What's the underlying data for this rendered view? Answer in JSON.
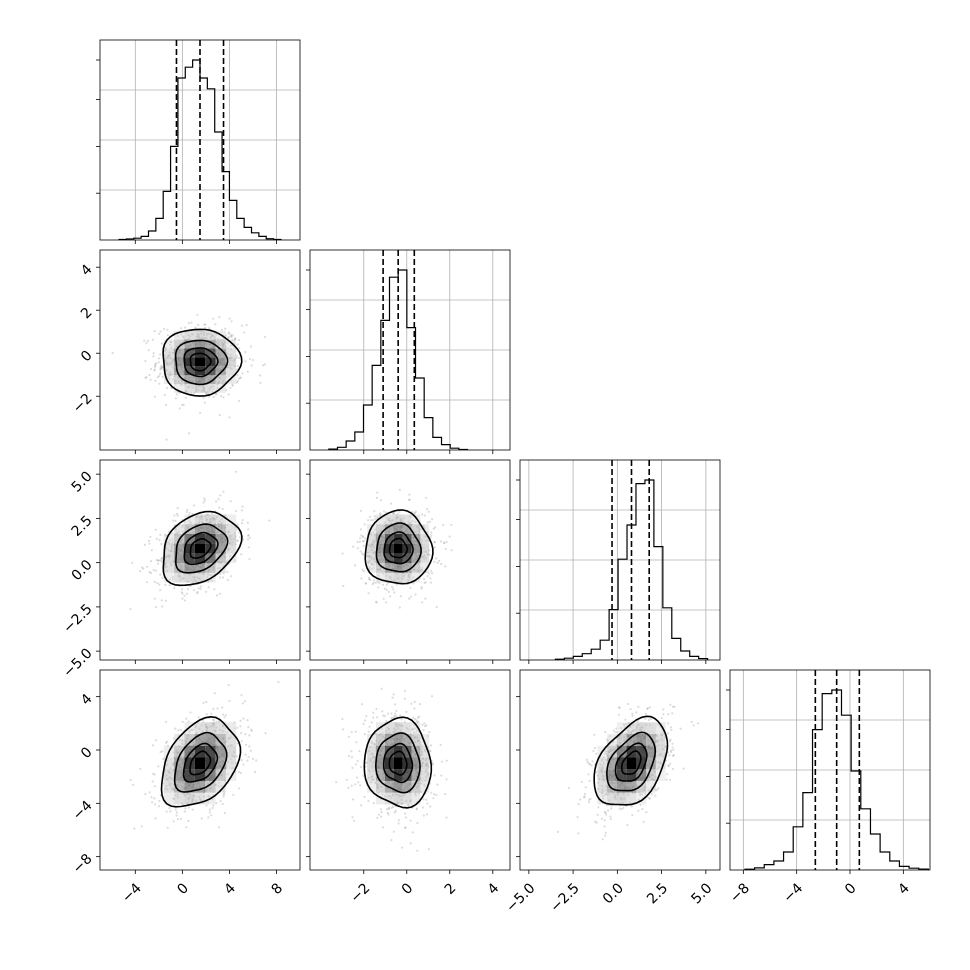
{
  "chart_data": {
    "type": "corner",
    "title": "",
    "grid": true,
    "parameters": [
      {
        "range": [
          -7,
          10
        ],
        "ticks": [
          -4,
          0,
          4,
          8
        ],
        "tick_labels": [
          "−4",
          "0",
          "4",
          "8"
        ],
        "mean": 1.5,
        "sd": 1.6,
        "quantiles": [
          -0.5,
          1.5,
          3.5
        ],
        "hist": [
          0.003,
          0.006,
          0.01,
          0.02,
          0.05,
          0.12,
          0.27,
          0.52,
          0.9,
          0.96,
          1.0,
          0.9,
          0.84,
          0.6,
          0.38,
          0.22,
          0.12,
          0.07,
          0.04,
          0.02,
          0.007,
          0.003
        ]
      },
      {
        "range": [
          -4.5,
          4.8
        ],
        "ticks": [
          -2,
          0,
          2,
          4
        ],
        "tick_labels": [
          "−2",
          "0",
          "2",
          "4"
        ],
        "mean": -0.4,
        "sd": 0.75,
        "quantiles": [
          -1.1,
          -0.4,
          0.35
        ],
        "hist": [
          0.005,
          0.015,
          0.05,
          0.1,
          0.25,
          0.47,
          0.72,
          0.96,
          1.0,
          0.68,
          0.4,
          0.18,
          0.07,
          0.03,
          0.01,
          0.003
        ]
      },
      {
        "range": [
          -5.5,
          5.8
        ],
        "ticks": [
          -5.0,
          -2.5,
          0.0,
          2.5,
          5.0
        ],
        "tick_labels": [
          "−5.0",
          "−2.5",
          "0.0",
          "2.5",
          "5.0"
        ],
        "mean": 0.8,
        "sd": 1.0,
        "quantiles": [
          -0.3,
          0.8,
          1.8
        ],
        "hist": [
          0.004,
          0.01,
          0.02,
          0.035,
          0.06,
          0.11,
          0.28,
          0.56,
          0.75,
          0.98,
          1.0,
          0.63,
          0.29,
          0.12,
          0.05,
          0.02,
          0.008
        ]
      },
      {
        "range": [
          -9,
          6
        ],
        "ticks": [
          -8,
          -4,
          0,
          4
        ],
        "tick_labels": [
          "−8",
          "−4",
          "0",
          "4"
        ],
        "mean": -1.0,
        "sd": 1.6,
        "quantiles": [
          -2.6,
          -1.0,
          0.7
        ],
        "hist": [
          0.004,
          0.012,
          0.03,
          0.05,
          0.1,
          0.24,
          0.43,
          0.78,
          0.98,
          1.0,
          0.86,
          0.55,
          0.34,
          0.2,
          0.1,
          0.05,
          0.02,
          0.01,
          0.005
        ]
      }
    ],
    "correlations": [
      [
        1,
        0,
        0.3,
        0.35
      ],
      [
        0,
        1,
        0,
        -0.05
      ],
      [
        0.3,
        0,
        1,
        0.4
      ],
      [
        0.35,
        -0.05,
        0.4,
        1
      ]
    ],
    "contour_levels_sigma": [
      0.5,
      1.0,
      1.5,
      2.0
    ],
    "colors": {
      "points": "#9a9a9a",
      "density": "#000000",
      "lines": "#000000"
    }
  }
}
